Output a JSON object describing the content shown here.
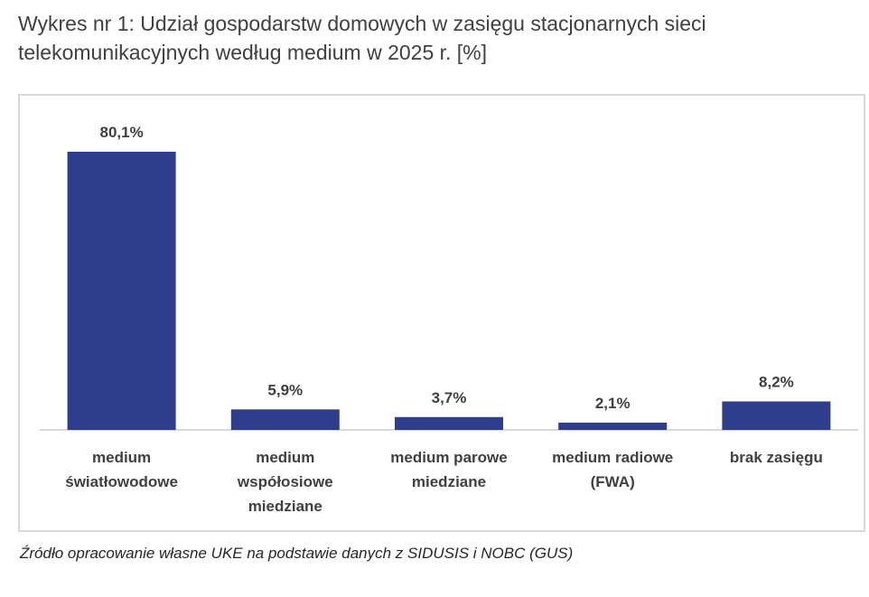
{
  "title": "Wykres nr 1: Udział gospodarstw domowych w zasięgu stacjonarnych sieci telekomunikacyjnych według medium w 2025 r. [%]",
  "source": "Źródło opracowanie własne UKE na podstawie danych z SIDUSIS i NOBC (GUS)",
  "chart_data": {
    "type": "bar",
    "categories": [
      [
        "medium",
        "światłowodowe"
      ],
      [
        "medium",
        "współosiowe",
        "miedziane"
      ],
      [
        "medium parowe",
        "miedziane"
      ],
      [
        "medium radiowe",
        "(FWA)"
      ],
      [
        "brak zasięgu"
      ]
    ],
    "values": [
      80.1,
      5.9,
      3.7,
      2.1,
      8.2
    ],
    "value_labels": [
      "80,1%",
      "5,9%",
      "3,7%",
      "2,1%",
      "8,2%"
    ],
    "ylim": [
      0,
      100
    ],
    "grid": false,
    "legend": "none",
    "bar_color": "#2e3d8c",
    "axis_color": "#d9d9d9"
  }
}
